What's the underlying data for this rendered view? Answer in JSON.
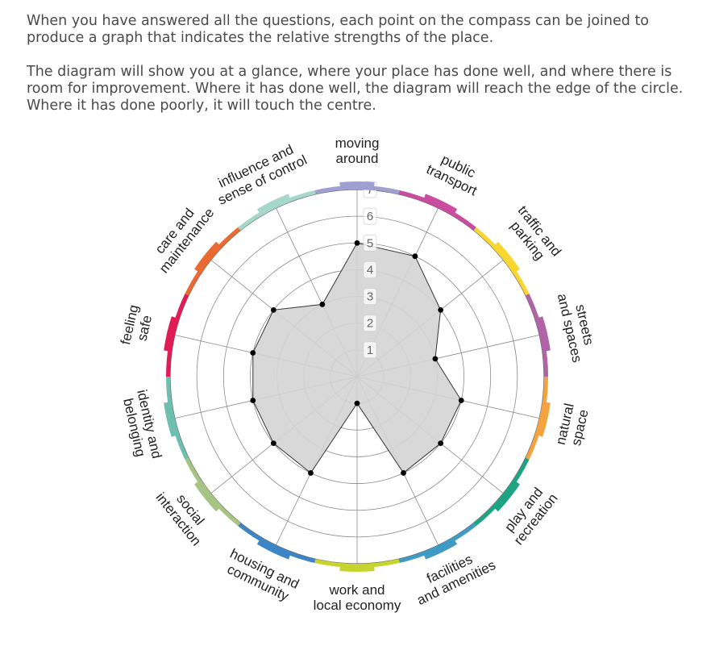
{
  "intro": {
    "paragraph1": "When you have answered all the questions, each point on the compass can be joined to produce a graph that indicates the relative strengths of the place.",
    "paragraph2": "The diagram will show you at a glance, where your place has done well, and where there is room for improvement. Where it has done well, the diagram will reach the edge of the circle. Where it has done poorly, it will touch the centre."
  },
  "chart_data": {
    "type": "radar",
    "scale": {
      "min": 0,
      "max": 7,
      "ticks": [
        "1",
        "2",
        "3",
        "4",
        "5",
        "6",
        "7"
      ]
    },
    "fill_color": "#d4d4d4",
    "categories": [
      {
        "name": "moving around",
        "lines": [
          "moving",
          "around"
        ],
        "value": 5,
        "color": "#9f9fd1"
      },
      {
        "name": "public transport",
        "lines": [
          "public",
          "transport"
        ],
        "value": 5,
        "color": "#c94c9e"
      },
      {
        "name": "traffic and parking",
        "lines": [
          "traffic and",
          "parking"
        ],
        "value": 4,
        "color": "#f9d630"
      },
      {
        "name": "streets and spaces",
        "lines": [
          "streets",
          "and spaces"
        ],
        "value": 3,
        "color": "#b063a7"
      },
      {
        "name": "natural space",
        "lines": [
          "natural",
          "space"
        ],
        "value": 4,
        "color": "#f4a340"
      },
      {
        "name": "play and recreation",
        "lines": [
          "play and",
          "recreation"
        ],
        "value": 4,
        "color": "#1fa483"
      },
      {
        "name": "facilities and amenities",
        "lines": [
          "facilities",
          "and amenities"
        ],
        "value": 4,
        "color": "#3f9bc3"
      },
      {
        "name": "work and local economy",
        "lines": [
          "work and",
          "local economy"
        ],
        "value": 1,
        "color": "#c6d42f"
      },
      {
        "name": "housing and community",
        "lines": [
          "housing and",
          "community"
        ],
        "value": 4,
        "color": "#3d86c6"
      },
      {
        "name": "social interaction",
        "lines": [
          "social",
          "interaction"
        ],
        "value": 4,
        "color": "#a6c484"
      },
      {
        "name": "identity and belonging",
        "lines": [
          "identity and",
          "belonging"
        ],
        "value": 4,
        "color": "#6dbfb0"
      },
      {
        "name": "feeling safe",
        "lines": [
          "feeling",
          "safe"
        ],
        "value": 4,
        "color": "#e01b55"
      },
      {
        "name": "care and maintenance",
        "lines": [
          "care and",
          "maintenance"
        ],
        "value": 4,
        "color": "#ea6a32"
      },
      {
        "name": "influence and sense of control",
        "lines": [
          "influence and",
          "sense of control"
        ],
        "value": 3,
        "color": "#a5d8cb"
      }
    ]
  }
}
